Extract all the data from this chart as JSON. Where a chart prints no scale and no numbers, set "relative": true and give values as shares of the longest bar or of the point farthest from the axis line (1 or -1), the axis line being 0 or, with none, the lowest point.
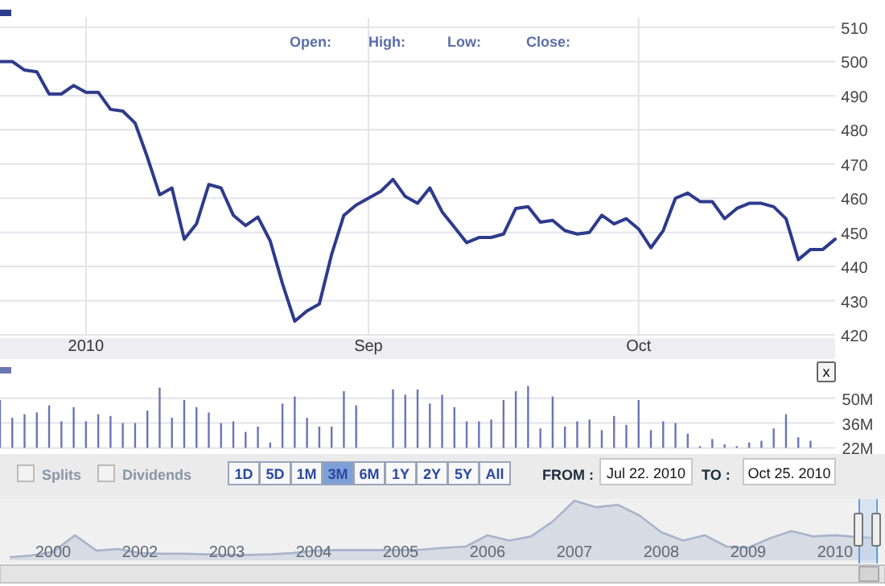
{
  "chart_data": [
    {
      "type": "line",
      "categories": [
        null,
        null,
        null,
        null,
        null,
        null,
        null,
        "2010",
        null,
        null,
        null,
        null,
        null,
        null,
        null,
        null,
        null,
        null,
        null,
        null,
        null,
        null,
        null,
        null,
        null,
        null,
        null,
        null,
        null,
        null,
        "Sep",
        null,
        null,
        null,
        null,
        null,
        null,
        null,
        null,
        null,
        null,
        null,
        null,
        null,
        null,
        null,
        null,
        null,
        null,
        null,
        null,
        null,
        "Oct",
        null,
        null,
        null,
        null,
        null,
        null,
        null,
        null,
        null,
        null,
        null,
        null,
        null,
        null,
        null,
        null
      ],
      "values": [
        500,
        500,
        497.5,
        497,
        490.5,
        490.5,
        493,
        491,
        491,
        486,
        485.5,
        482,
        472,
        461,
        463,
        448,
        452.5,
        464,
        463,
        455,
        452,
        454.5,
        447.5,
        435,
        424,
        427,
        429,
        443.5,
        455,
        458,
        460,
        462,
        465.5,
        460.5,
        458.5,
        463,
        456,
        451.5,
        447,
        448.5,
        448.5,
        449.5,
        457,
        457.5,
        453,
        453.5,
        450.5,
        449.5,
        450,
        455,
        452.5,
        454,
        451,
        445.5,
        450.5,
        460,
        461.5,
        459,
        459,
        454,
        457,
        458.5,
        458.5,
        457.5,
        454,
        442,
        445,
        445,
        448
      ],
      "color": "#2e3b8c",
      "ylim": [
        420,
        510
      ],
      "yticks": [
        420,
        430,
        440,
        450,
        460,
        470,
        480,
        490,
        500,
        510
      ],
      "grid": true,
      "annotations": [
        "Open:",
        "High:",
        "Low:",
        "Close:"
      ]
    },
    {
      "type": "bar",
      "categories": [
        null,
        null,
        null,
        null,
        null,
        null,
        null,
        null,
        null,
        null,
        null,
        null,
        null,
        null,
        null,
        null,
        null,
        null,
        null,
        null,
        null,
        null,
        null,
        null,
        null,
        null,
        null,
        null,
        null,
        null,
        null,
        null,
        null,
        null,
        null,
        null,
        null,
        null,
        null,
        null,
        null,
        null,
        null,
        null,
        null,
        null,
        null,
        null,
        null,
        null,
        null,
        null,
        null,
        null,
        null,
        null,
        null,
        null,
        null,
        null,
        null,
        null,
        null,
        null,
        null,
        null,
        null,
        null,
        null
      ],
      "values": [
        49,
        39,
        41,
        42,
        46,
        37,
        45,
        37,
        41,
        40,
        36,
        36,
        43,
        56,
        39,
        49,
        45,
        42,
        36,
        37,
        31,
        34,
        25,
        47,
        51,
        39,
        34,
        34,
        54,
        46,
        null,
        null,
        55,
        52,
        55,
        47,
        52,
        45,
        37,
        37,
        38,
        49,
        54,
        57,
        33,
        51,
        34,
        37,
        38,
        32,
        40,
        35,
        49,
        32,
        37,
        36,
        30,
        23,
        27,
        24,
        23,
        25,
        26,
        33,
        41,
        28,
        26,
        null,
        null
      ],
      "color": "#6b75b3",
      "ylim": [
        22,
        57
      ],
      "yticks": [
        {
          "value": 22,
          "label": "22M"
        },
        {
          "value": 36,
          "label": "36M"
        },
        {
          "value": 50,
          "label": "50M"
        }
      ],
      "grid": "y",
      "tick_labels": "y",
      "annotations": [
        "x"
      ]
    },
    {
      "type": "area",
      "relative": true,
      "categories": [
        null,
        null,
        "2000",
        null,
        null,
        null,
        "2002",
        null,
        null,
        null,
        "2003",
        null,
        null,
        null,
        "2004",
        null,
        null,
        null,
        "2005",
        null,
        null,
        null,
        "2006",
        null,
        null,
        null,
        "2007",
        null,
        null,
        null,
        "2008",
        null,
        null,
        null,
        "2009",
        null,
        null,
        null,
        "2010",
        null,
        null
      ],
      "values": [
        0.05,
        0.08,
        0.14,
        0.42,
        0.16,
        0.19,
        0.12,
        0.11,
        0.11,
        0.1,
        0.09,
        0.09,
        0.1,
        0.12,
        0.16,
        0.17,
        0.17,
        0.17,
        0.17,
        0.18,
        0.21,
        0.23,
        0.42,
        0.33,
        0.4,
        0.65,
        1,
        0.89,
        0.93,
        0.75,
        0.47,
        0.33,
        0.42,
        0.23,
        0.21,
        0.37,
        0.49,
        0.4,
        0.42,
        0.39,
        0.37
      ],
      "color": "#a9b4cc",
      "tick_labels": "x"
    },
    {
      "type": "other",
      "annotations": [
        "Splits",
        "Dividends",
        "1D",
        "5D",
        "1M",
        "3M",
        "6M",
        "1Y",
        "2Y",
        "5Y",
        "All",
        "FROM :",
        "Jul 22. 2010",
        "TO :",
        "Oct 25. 2010"
      ]
    }
  ]
}
